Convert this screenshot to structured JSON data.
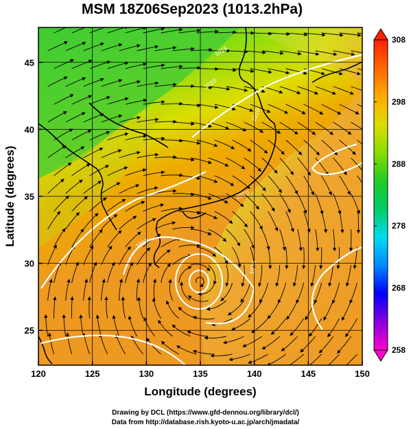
{
  "title": "MSM 18Z06Sep2023 (1013.2hPa)",
  "xaxis": {
    "label": "Longitude (degrees)",
    "ticks": [
      120,
      125,
      130,
      135,
      140,
      145,
      150
    ],
    "range": [
      120,
      150
    ]
  },
  "yaxis": {
    "label": "Latitude  (degrees)",
    "ticks": [
      25,
      30,
      35,
      40,
      45
    ],
    "range": [
      22.4,
      47.6
    ]
  },
  "colorbar": {
    "ticks": [
      258,
      268,
      278,
      288,
      298,
      308
    ],
    "range": [
      258,
      308
    ],
    "colors": [
      "#ff00cc",
      "#8800dd",
      "#0000ff",
      "#0088ff",
      "#00ddee",
      "#00cc66",
      "#22cc22",
      "#88dd00",
      "#dddd00",
      "#ffaa00",
      "#ff6600",
      "#ff2200"
    ]
  },
  "contour_labels": [
    "1010",
    "1010",
    "1010",
    "1015",
    "1015",
    "1010"
  ],
  "footer": {
    "line1": "Drawing by DCL (https://www.gfd-dennou.org/library/dcl/)",
    "line2": "Data from http://database.rish.kyoto-u.ac.jp/arch/jmadata/"
  }
}
